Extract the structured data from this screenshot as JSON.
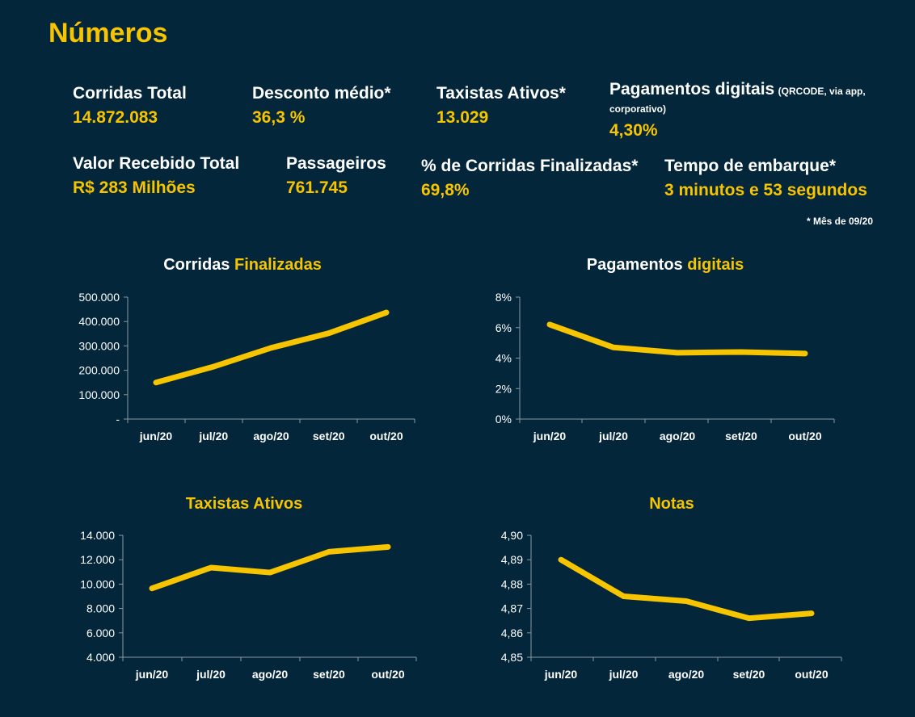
{
  "page": {
    "title": "Números",
    "footnote": "* Mês de 09/20",
    "accent": "#f7c400",
    "background": "#03263a"
  },
  "stats": {
    "corridas_total": {
      "label": "Corridas Total",
      "value": "14.872.083"
    },
    "desconto_medio": {
      "label": "Desconto médio*",
      "value": "36,3 %"
    },
    "taxistas_ativos": {
      "label": "Taxistas Ativos*",
      "value": "13.029"
    },
    "pagamentos_digitais": {
      "label": "Pagamentos digitais",
      "note": "(QRCODE, via app, corporativo)",
      "value": "4,30%"
    },
    "valor_recebido": {
      "label": "Valor Recebido Total",
      "value": "R$ 283 Milhões"
    },
    "passageiros": {
      "label": "Passageiros",
      "value": "761.745"
    },
    "corridas_finalizadas": {
      "label": "% de Corridas Finalizadas*",
      "value": "69,8%"
    },
    "tempo_embarque": {
      "label": "Tempo de embarque*",
      "value": "3 minutos e 53 segundos"
    }
  },
  "chart_data": [
    {
      "type": "line",
      "title_parts": [
        {
          "text": "Corridas ",
          "color": "#ffffff"
        },
        {
          "text": "Finalizadas",
          "color": "#f7c400"
        }
      ],
      "categories": [
        "jun/20",
        "jul/20",
        "ago/20",
        "set/20",
        "out/20"
      ],
      "series": [
        {
          "values": [
            150000,
            215000,
            292000,
            352000,
            437000
          ]
        }
      ],
      "ylim": [
        0,
        500000
      ],
      "yticks": [
        {
          "v": 0,
          "label": "-"
        },
        {
          "v": 100000,
          "label": "100.000"
        },
        {
          "v": 200000,
          "label": "200.000"
        },
        {
          "v": 300000,
          "label": "300.000"
        },
        {
          "v": 400000,
          "label": "400.000"
        },
        {
          "v": 500000,
          "label": "500.000"
        }
      ],
      "grid": false,
      "line_color": "#f7c400"
    },
    {
      "type": "line",
      "title_parts": [
        {
          "text": "Pagamentos ",
          "color": "#ffffff"
        },
        {
          "text": "digitais",
          "color": "#f7c400"
        }
      ],
      "categories": [
        "jun/20",
        "jul/20",
        "ago/20",
        "set/20",
        "out/20"
      ],
      "series": [
        {
          "values": [
            6.2,
            4.7,
            4.35,
            4.4,
            4.3
          ]
        }
      ],
      "ylim": [
        0,
        8
      ],
      "yticks": [
        {
          "v": 0,
          "label": "0%"
        },
        {
          "v": 2,
          "label": "2%"
        },
        {
          "v": 4,
          "label": "4%"
        },
        {
          "v": 6,
          "label": "6%"
        },
        {
          "v": 8,
          "label": "8%"
        }
      ],
      "grid": false,
      "line_color": "#f7c400"
    },
    {
      "type": "line",
      "title_parts": [
        {
          "text": "Taxistas Ativos",
          "color": "#f7c400"
        }
      ],
      "categories": [
        "jun/20",
        "jul/20",
        "ago/20",
        "set/20",
        "out/20"
      ],
      "series": [
        {
          "values": [
            9650,
            11350,
            10950,
            12650,
            13050
          ]
        }
      ],
      "ylim": [
        4000,
        14000
      ],
      "yticks": [
        {
          "v": 4000,
          "label": "4.000"
        },
        {
          "v": 6000,
          "label": "6.000"
        },
        {
          "v": 8000,
          "label": "8.000"
        },
        {
          "v": 10000,
          "label": "10.000"
        },
        {
          "v": 12000,
          "label": "12.000"
        },
        {
          "v": 14000,
          "label": "14.000"
        }
      ],
      "grid": false,
      "line_color": "#f7c400"
    },
    {
      "type": "line",
      "title_parts": [
        {
          "text": "Notas",
          "color": "#f7c400"
        }
      ],
      "categories": [
        "jun/20",
        "jul/20",
        "ago/20",
        "set/20",
        "out/20"
      ],
      "series": [
        {
          "values": [
            4.89,
            4.875,
            4.873,
            4.866,
            4.868
          ]
        }
      ],
      "ylim": [
        4.85,
        4.9
      ],
      "yticks": [
        {
          "v": 4.85,
          "label": "4,85"
        },
        {
          "v": 4.86,
          "label": "4,86"
        },
        {
          "v": 4.87,
          "label": "4,87"
        },
        {
          "v": 4.88,
          "label": "4,88"
        },
        {
          "v": 4.89,
          "label": "4,89"
        },
        {
          "v": 4.9,
          "label": "4,90"
        }
      ],
      "grid": false,
      "line_color": "#f7c400"
    }
  ]
}
